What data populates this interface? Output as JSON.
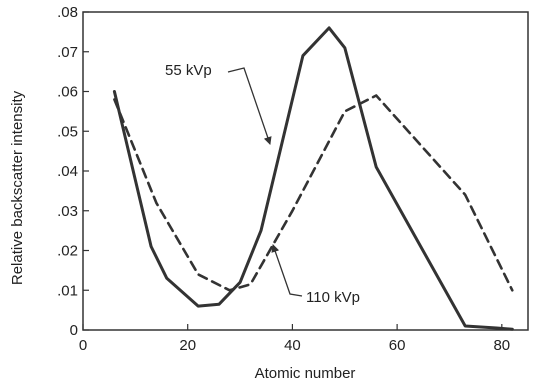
{
  "chart_data": {
    "type": "line",
    "xlabel": "Atomic number",
    "ylabel": "Relative backscatter intensity",
    "xlim": [
      0,
      85
    ],
    "ylim": [
      0,
      0.08
    ],
    "xticks": [
      {
        "value": 0,
        "label": "0"
      },
      {
        "value": 20,
        "label": "20"
      },
      {
        "value": 40,
        "label": "40"
      },
      {
        "value": 60,
        "label": "60"
      },
      {
        "value": 80,
        "label": "80"
      }
    ],
    "yticks": [
      {
        "value": 0,
        "label": "0"
      },
      {
        "value": 0.01,
        "label": ".01"
      },
      {
        "value": 0.02,
        "label": ".02"
      },
      {
        "value": 0.03,
        "label": ".03"
      },
      {
        "value": 0.04,
        "label": ".04"
      },
      {
        "value": 0.05,
        "label": ".05"
      },
      {
        "value": 0.06,
        "label": ".06"
      },
      {
        "value": 0.07,
        "label": ".07"
      },
      {
        "value": 0.08,
        "label": ".08"
      }
    ],
    "grid": false,
    "series": [
      {
        "name": "55 kVp",
        "style": "solid",
        "color": "#333333",
        "x": [
          6,
          13,
          16,
          22,
          26,
          30,
          34,
          42,
          47,
          50,
          56,
          73,
          79,
          82
        ],
        "y": [
          0.06,
          0.021,
          0.013,
          0.006,
          0.0065,
          0.012,
          0.025,
          0.069,
          0.076,
          0.071,
          0.041,
          0.001,
          0.0005,
          0.0002
        ]
      },
      {
        "name": "110 kVp",
        "style": "dashed",
        "color": "#333333",
        "x": [
          6,
          14,
          22,
          28,
          32,
          40,
          50,
          56,
          73,
          82
        ],
        "y": [
          0.058,
          0.032,
          0.014,
          0.01,
          0.0115,
          0.03,
          0.055,
          0.059,
          0.034,
          0.01
        ]
      }
    ],
    "annotations": [
      {
        "text": "55 kVp",
        "series": 0
      },
      {
        "text": "110 kVp",
        "series": 1
      }
    ]
  }
}
